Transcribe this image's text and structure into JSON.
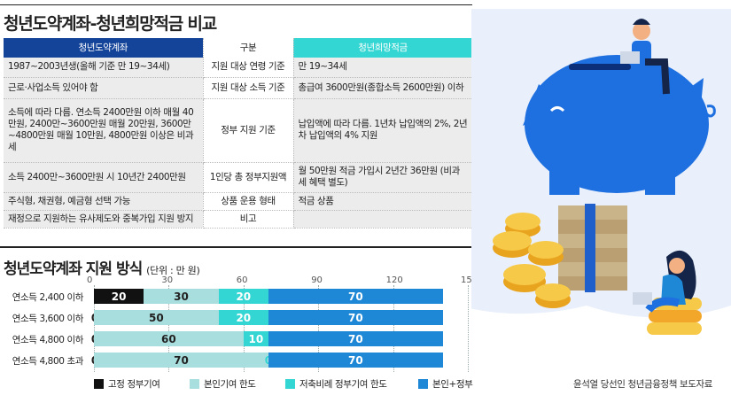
{
  "comparison": {
    "title": "청년도약계좌-청년희망적금 비교",
    "header": {
      "left": "청년도약계좌",
      "middle": "구분",
      "right": "청년희망적금"
    },
    "rows": [
      {
        "left": "1987~2003년생(올해 기준 만 19~34세)",
        "middle": "지원 대상 연령 기준",
        "right": "만 19~34세"
      },
      {
        "left": "근로·사업소득 있어야 함",
        "middle": "지원 대상 소득 기준",
        "right": "총급여 3600만원(종합소득 2600만원) 이하"
      },
      {
        "left": "소득에 따라 다름. 연소득 2400만원 이하 매월 40만원, 2400만~3600만원 매월 20만원, 3600만~4800만원 매월 10만원, 4800만원 이상은 비과세",
        "middle": "정부 지원 기준",
        "right": "납입액에 따라 다름. 1년차 납입액의 2%, 2년차 납입액의 4% 지원"
      },
      {
        "left": "소득 2400만~3600만원 시 10년간 2400만원",
        "middle": "1인당 총 정부지원액",
        "right": "월 50만원 적금 가입시 2년간 36만원 (비과세 혜택 별도)"
      },
      {
        "left": "주식형, 채권형, 예금형 선택 가능",
        "middle": "상품 운용 형태",
        "right": "적금 상품"
      },
      {
        "left": "재정으로 지원하는 유사제도와 중복가입 지원 방지",
        "middle": "비고",
        "right": ""
      }
    ]
  },
  "chart_data": {
    "type": "bar",
    "stacked": true,
    "orientation": "horizontal",
    "title": "청년도약계좌 지원 방식",
    "unit_label": "(단위 : 만 원)",
    "categories": [
      "연소득 2,400 이하",
      "연소득 3,600 이하",
      "연소득 4,800 이하",
      "연소득 4,800 초과"
    ],
    "xlim": [
      0,
      150
    ],
    "ticks": [
      "0",
      "30",
      "60",
      "90",
      "120",
      "150"
    ],
    "grid": true,
    "legend_position": "bottom",
    "series": [
      {
        "name": "고정 정부기여",
        "color": "#111111",
        "values": [
          20,
          0,
          0,
          0
        ]
      },
      {
        "name": "본인기여 한도",
        "color": "#a9dede",
        "values": [
          30,
          50,
          60,
          70
        ]
      },
      {
        "name": "저축비례 정부기여 한도",
        "color": "#33d6d2",
        "values": [
          20,
          20,
          10,
          0
        ]
      },
      {
        "name": "본인+정부",
        "color": "#1e88d6",
        "values": [
          70,
          70,
          70,
          70
        ]
      }
    ]
  },
  "credit": "윤석열 당선인 청년금융정책 보도자료",
  "colors": {
    "piggy": "#1e6fe0",
    "bg_blob": "#e9f0fb",
    "coin": "#f2b733"
  }
}
